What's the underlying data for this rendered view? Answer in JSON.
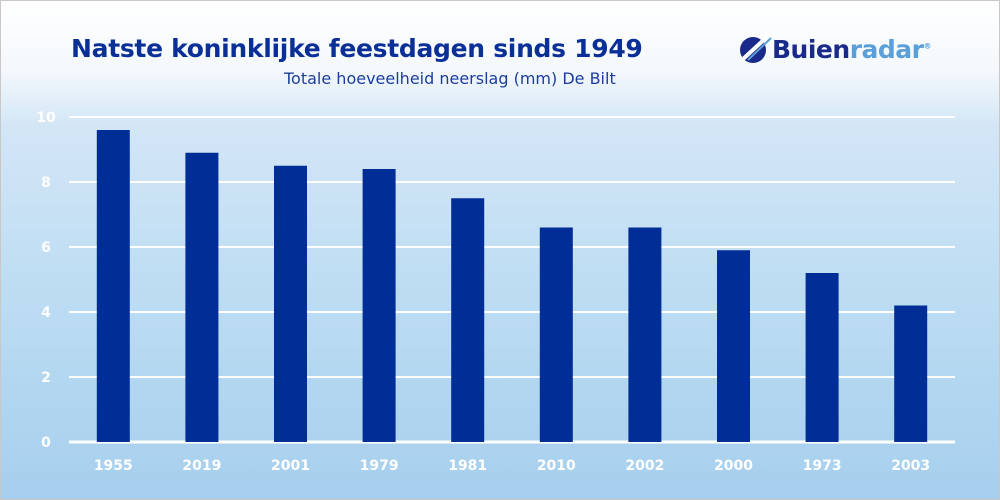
{
  "chart_data": {
    "type": "bar",
    "title": "Natste koninklijke feestdagen sinds 1949",
    "subtitle": "Totale hoeveelheid neerslag (mm) De Bilt",
    "categories": [
      "1955",
      "2019",
      "2001",
      "1979",
      "1981",
      "2010",
      "2002",
      "2000",
      "1973",
      "2003"
    ],
    "values": [
      9.6,
      8.9,
      8.5,
      8.4,
      7.5,
      6.6,
      6.6,
      5.9,
      5.2,
      4.2
    ],
    "ylim": [
      0,
      10
    ],
    "yticks": [
      0,
      2,
      4,
      6,
      8,
      10
    ],
    "grid": true,
    "bar_color": "#002d96",
    "grid_color": "#ffffff"
  },
  "logo": {
    "text_a": "Buien",
    "text_b": "radar",
    "mark": "®"
  }
}
